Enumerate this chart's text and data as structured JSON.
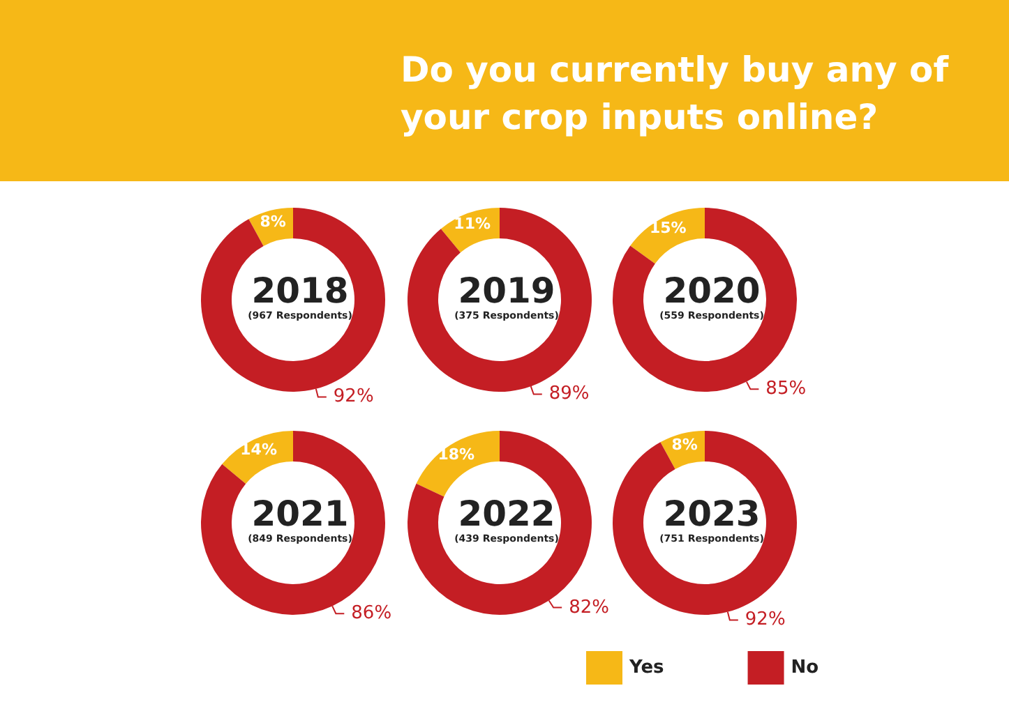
{
  "chart_data": {
    "type": "donut",
    "title": "Do you currently buy any of your crop inputs online?",
    "categories": [
      "Yes",
      "No"
    ],
    "colors": [
      "#f6b817",
      "#c41e24"
    ],
    "legend": "bottom",
    "series": [
      {
        "name": "2018",
        "values": [
          8,
          92
        ],
        "value_labels": [
          "8%",
          "92%"
        ]
      },
      {
        "name": "2019",
        "values": [
          11,
          89
        ],
        "value_labels": [
          "11%",
          "89%"
        ]
      },
      {
        "name": "2020",
        "values": [
          15,
          85
        ],
        "value_labels": [
          "15%",
          "85%"
        ]
      },
      {
        "name": "2021",
        "values": [
          14,
          86
        ],
        "value_labels": [
          "14%",
          "86%"
        ]
      },
      {
        "name": "2022",
        "values": [
          18,
          82
        ],
        "value_labels": [
          "18%",
          "82%"
        ]
      },
      {
        "name": "2023",
        "values": [
          8,
          92
        ],
        "value_labels": [
          "8%",
          "92%"
        ]
      }
    ],
    "annotations": [
      "(967 Respondents)",
      "(375 Respondents)",
      "(559 Respondents)",
      "(849 Respondents)",
      "(439 Respondents)",
      "(751 Respondents)"
    ]
  }
}
